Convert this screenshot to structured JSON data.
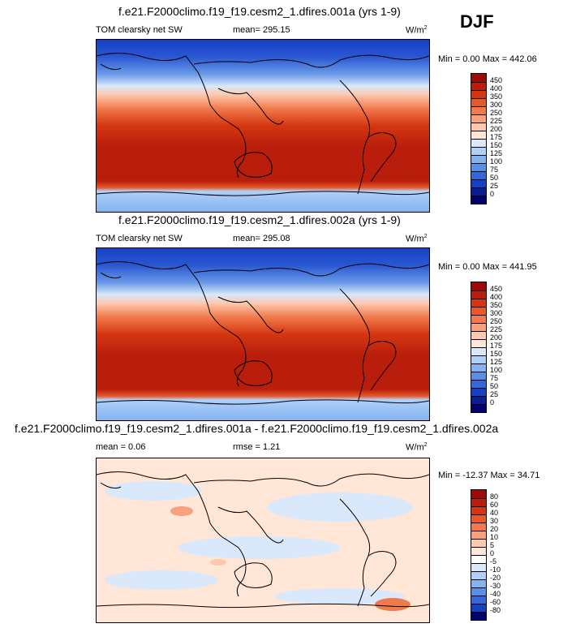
{
  "season": "DJF",
  "units_label": "W/m",
  "units_sup": "2",
  "panels": [
    {
      "title": "f.e21.F2000climo.f19_f19.cesm2_1.dfires.001a (yrs 1-9)",
      "variable": "TOM clearsky net SW",
      "stat": "mean= 295.15",
      "minmax": "Min =   0.00 Max = 442.06",
      "colorbar": {
        "levels": [
          "450",
          "400",
          "350",
          "300",
          "250",
          "225",
          "200",
          "175",
          "150",
          "125",
          "100",
          "75",
          "50",
          "25",
          "0"
        ],
        "colors": [
          "#9e0a08",
          "#b81e0b",
          "#d53611",
          "#e65a2a",
          "#f17a4c",
          "#f9a07c",
          "#fdc8ae",
          "#ffe6d6",
          "#d9e9fb",
          "#afd0f8",
          "#86b3f0",
          "#5a8fe6",
          "#3467d8",
          "#1441c4",
          "#0b1d94",
          "#02006e"
        ]
      }
    },
    {
      "title": "f.e21.F2000climo.f19_f19.cesm2_1.dfires.002a (yrs 1-9)",
      "variable": "TOM clearsky net SW",
      "stat": "mean= 295.08",
      "minmax": "Min =   0.00 Max = 441.95",
      "colorbar": {
        "levels": [
          "450",
          "400",
          "350",
          "300",
          "250",
          "225",
          "200",
          "175",
          "150",
          "125",
          "100",
          "75",
          "50",
          "25",
          "0"
        ],
        "colors": [
          "#9e0a08",
          "#b81e0b",
          "#d53611",
          "#e65a2a",
          "#f17a4c",
          "#f9a07c",
          "#fdc8ae",
          "#ffe6d6",
          "#d9e9fb",
          "#afd0f8",
          "#86b3f0",
          "#5a8fe6",
          "#3467d8",
          "#1441c4",
          "#0b1d94",
          "#02006e"
        ]
      }
    },
    {
      "title": "f.e21.F2000climo.f19_f19.cesm2_1.dfires.001a - f.e21.F2000climo.f19_f19.cesm2_1.dfires.002a",
      "stat_left": "mean =   0.06",
      "stat": "rmse =   1.21",
      "minmax": "Min = -12.37 Max =  34.71",
      "colorbar": {
        "levels": [
          "80",
          "60",
          "40",
          "30",
          "20",
          "10",
          "5",
          "0",
          "-5",
          "-10",
          "-20",
          "-30",
          "-40",
          "-60",
          "-80"
        ],
        "colors": [
          "#9e0a08",
          "#b81e0b",
          "#d53611",
          "#e65a2a",
          "#f17a4c",
          "#f9a07c",
          "#fdc8ae",
          "#ffe6d6",
          "#ffffff",
          "#d9e9fb",
          "#afd0f8",
          "#86b3f0",
          "#5a8fe6",
          "#3467d8",
          "#1441c4",
          "#02006e"
        ]
      }
    }
  ]
}
